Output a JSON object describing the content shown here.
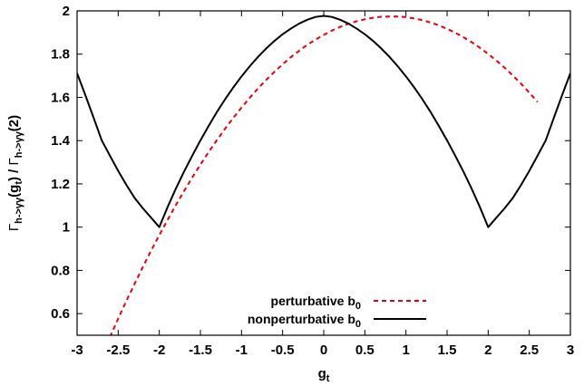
{
  "chart_data": {
    "type": "line",
    "xlabel_main": "g",
    "xlabel_sub": "t",
    "ylabel": {
      "gamma1": "Γ",
      "sub1": "h->γγ",
      "paren1": "(g",
      "paren1_sub": "t",
      "close1": ") / ",
      "gamma2": "Γ",
      "sub2": "h->γγ",
      "paren2": "(2)"
    },
    "xlim": [
      -3,
      3
    ],
    "ylim": [
      0.5,
      2
    ],
    "x_ticks": [
      -3,
      -2.5,
      -2,
      -1.5,
      -1,
      -0.5,
      0,
      0.5,
      1,
      1.5,
      2,
      2.5,
      3
    ],
    "x_tick_labels": [
      "-3",
      "-2.5",
      "-2",
      "-1.5",
      "-1",
      "-0.5",
      "0",
      "0.5",
      "1",
      "1.5",
      "2",
      "2.5",
      "3"
    ],
    "y_ticks": [
      0.6,
      0.8,
      1,
      1.2,
      1.4,
      1.6,
      1.8,
      2
    ],
    "y_tick_labels": [
      "0.6",
      "0.8",
      "1",
      "1.2",
      "1.4",
      "1.6",
      "1.8",
      "2"
    ],
    "legend_position": "bottom-center",
    "series": [
      {
        "name": "perturbative b",
        "name_sub": "0",
        "color": "#e8000b",
        "style": "dashed",
        "x": [
          -2.6,
          -2.5,
          -2.4,
          -2.3,
          -2.2,
          -2.1,
          -2.0,
          -1.9,
          -1.8,
          -1.7,
          -1.6,
          -1.5,
          -1.4,
          -1.3,
          -1.2,
          -1.1,
          -1.0,
          -0.9,
          -0.8,
          -0.7,
          -0.6,
          -0.5,
          -0.4,
          -0.3,
          -0.2,
          -0.1,
          0.0,
          0.1,
          0.2,
          0.3,
          0.4,
          0.5,
          0.6,
          0.7,
          0.8,
          0.9,
          1.0,
          1.1,
          1.2,
          1.3,
          1.4,
          1.5,
          1.6,
          1.7,
          1.8,
          1.9,
          2.0,
          2.1,
          2.2,
          2.3,
          2.4,
          2.5,
          2.6
        ],
        "y": [
          0.492,
          0.577,
          0.659,
          0.738,
          0.816,
          0.891,
          0.963,
          1.033,
          1.101,
          1.166,
          1.229,
          1.289,
          1.347,
          1.402,
          1.455,
          1.505,
          1.553,
          1.598,
          1.641,
          1.681,
          1.718,
          1.753,
          1.786,
          1.815,
          1.843,
          1.867,
          1.889,
          1.909,
          1.926,
          1.94,
          1.952,
          1.961,
          1.968,
          1.973,
          1.974,
          1.974,
          1.971,
          1.965,
          1.957,
          1.946,
          1.933,
          1.917,
          1.899,
          1.878,
          1.855,
          1.829,
          1.801,
          1.77,
          1.737,
          1.701,
          1.663,
          1.622,
          1.579
        ]
      },
      {
        "name": "nonperturbative b",
        "name_sub": "0",
        "color": "#000000",
        "style": "solid",
        "x": [
          -3.0,
          -2.9,
          -2.8,
          -2.7,
          -2.6,
          -2.5,
          -2.4,
          -2.3,
          -2.2,
          -2.1,
          -2.0,
          -1.9,
          -1.8,
          -1.7,
          -1.6,
          -1.5,
          -1.4,
          -1.3,
          -1.2,
          -1.1,
          -1.0,
          -0.9,
          -0.8,
          -0.7,
          -0.6,
          -0.5,
          -0.4,
          -0.3,
          -0.2,
          -0.1,
          0.0,
          0.1,
          0.2,
          0.3,
          0.4,
          0.5,
          0.6,
          0.7,
          0.8,
          0.9,
          1.0,
          1.1,
          1.2,
          1.3,
          1.4,
          1.5,
          1.6,
          1.7,
          1.8,
          1.9,
          2.0,
          2.1,
          2.2,
          2.3,
          2.4,
          2.5,
          2.6,
          2.7,
          2.8,
          2.9,
          3.0
        ],
        "y": [
          1.712,
          1.611,
          1.507,
          1.401,
          1.33,
          1.26,
          1.195,
          1.135,
          1.087,
          1.044,
          1.0,
          1.092,
          1.177,
          1.256,
          1.33,
          1.401,
          1.468,
          1.532,
          1.591,
          1.646,
          1.697,
          1.744,
          1.787,
          1.826,
          1.861,
          1.892,
          1.918,
          1.941,
          1.959,
          1.972,
          1.977,
          1.972,
          1.959,
          1.941,
          1.918,
          1.892,
          1.861,
          1.826,
          1.787,
          1.744,
          1.697,
          1.646,
          1.591,
          1.532,
          1.468,
          1.401,
          1.33,
          1.256,
          1.177,
          1.092,
          1.0,
          1.044,
          1.087,
          1.135,
          1.195,
          1.26,
          1.33,
          1.401,
          1.507,
          1.611,
          1.712
        ]
      }
    ]
  }
}
